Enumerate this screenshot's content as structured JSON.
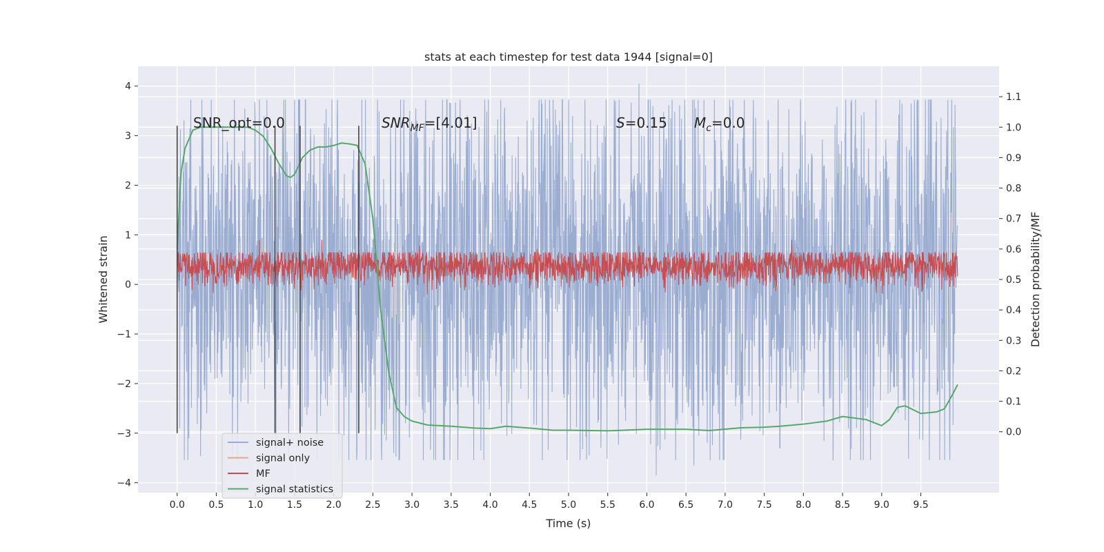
{
  "chart_data": {
    "type": "line",
    "title": "stats at each timestep for test data 1944 [signal=0]",
    "xlabel": "Time (s)",
    "ylabel": "Whitened strain",
    "ylabel_right": "Detection probability/MF",
    "xlim": [
      -0.5,
      10.5
    ],
    "ylim": [
      -4.2,
      4.4
    ],
    "ylim_right": [
      -0.2,
      1.2
    ],
    "x_ticks": [
      0.0,
      0.5,
      1.0,
      1.5,
      2.0,
      2.5,
      3.0,
      3.5,
      4.0,
      4.5,
      5.0,
      5.5,
      6.0,
      6.5,
      7.0,
      7.5,
      8.0,
      8.5,
      9.0,
      9.5
    ],
    "x_tick_labels": [
      "0.0",
      "0.5",
      "1.0",
      "1.5",
      "2.0",
      "2.5",
      "3.0",
      "3.5",
      "4.0",
      "4.5",
      "5.0",
      "5.5",
      "6.0",
      "6.5",
      "7.0",
      "7.5",
      "8.0",
      "8.5",
      "9.0",
      "9.5"
    ],
    "y_ticks": [
      -4,
      -3,
      -2,
      -1,
      0,
      1,
      2,
      3,
      4
    ],
    "y_tick_labels": [
      "−4",
      "−3",
      "−2",
      "−1",
      "0",
      "1",
      "2",
      "3",
      "4"
    ],
    "y_ticks_right": [
      0.0,
      0.1,
      0.2,
      0.3,
      0.4,
      0.5,
      0.6,
      0.7,
      0.8,
      0.9,
      1.0,
      1.1
    ],
    "y_tick_labels_right": [
      "0.0",
      "0.1",
      "0.2",
      "0.3",
      "0.4",
      "0.5",
      "0.6",
      "0.7",
      "0.8",
      "0.9",
      "1.0",
      "1.1"
    ],
    "grid": true,
    "legend_placement": "lower-left",
    "background": "#eaeaf2",
    "annotations": [
      {
        "x": 0.2,
        "y": 3.15,
        "text": "SNR_opt=0.0",
        "italic": false
      },
      {
        "x": 2.6,
        "y": 3.15,
        "text": "SNRMF=[4.01]",
        "italic": true
      },
      {
        "x": 5.6,
        "y": 3.15,
        "text": "S=0.15",
        "italic": true
      },
      {
        "x": 6.6,
        "y": 3.15,
        "text": "Mc=0.0",
        "italic": true
      }
    ],
    "vlines": {
      "x": [
        0.0,
        1.25,
        1.57,
        2.32
      ],
      "ymin": -3.0,
      "ymax": 3.2,
      "color": "#444444"
    },
    "series": [
      {
        "name": "signal+ noise",
        "axis": "left",
        "color": "#9aadd1",
        "kind": "noise",
        "x_range": [
          0.0,
          9.97
        ],
        "envelope": {
          "typical": [
            -1.6,
            2.2
          ],
          "extreme": [
            -3.85,
            4.05
          ]
        },
        "peaks": [
          {
            "x": 2.97,
            "y": 3.5
          },
          {
            "x": 5.9,
            "y": 4.05
          },
          {
            "x": 9.45,
            "y": 3.65
          },
          {
            "x": 0.58,
            "y": 3.2
          },
          {
            "x": 4.18,
            "y": 3.35
          },
          {
            "x": 7.55,
            "y": 3.3
          },
          {
            "x": 3.88,
            "y": -3.35
          },
          {
            "x": 6.12,
            "y": -3.85
          },
          {
            "x": 6.6,
            "y": -3.65
          },
          {
            "x": 8.38,
            "y": -3.55
          },
          {
            "x": 0.15,
            "y": -3.1
          },
          {
            "x": 7.7,
            "y": -3.3
          }
        ]
      },
      {
        "name": "signal only",
        "axis": "left",
        "color": "#e8a58c",
        "kind": "line",
        "x": [],
        "y": []
      },
      {
        "name": "MF",
        "axis": "right",
        "color": "#c44e52",
        "kind": "noise",
        "x_range": [
          0.0,
          9.97
        ],
        "envelope": {
          "typical": [
            0.51,
            0.58
          ],
          "extreme": [
            0.49,
            0.64
          ]
        },
        "peaks": [
          {
            "x": 1.05,
            "y": 0.63
          },
          {
            "x": 1.85,
            "y": 0.63
          },
          {
            "x": 7.85,
            "y": 0.63
          },
          {
            "x": 3.1,
            "y": 0.61
          },
          {
            "x": 5.9,
            "y": 0.61
          },
          {
            "x": 4.6,
            "y": 0.6
          }
        ]
      },
      {
        "name": "signal statistics",
        "axis": "right",
        "color": "#55a868",
        "kind": "line",
        "x": [
          0.0,
          0.05,
          0.1,
          0.15,
          0.2,
          0.3,
          0.5,
          0.7,
          0.9,
          1.0,
          1.1,
          1.2,
          1.3,
          1.4,
          1.45,
          1.5,
          1.6,
          1.7,
          1.8,
          1.9,
          2.0,
          2.1,
          2.2,
          2.3,
          2.4,
          2.5,
          2.55,
          2.6,
          2.7,
          2.8,
          2.9,
          3.0,
          3.2,
          3.5,
          3.8,
          4.0,
          4.2,
          4.5,
          4.8,
          5.0,
          5.5,
          6.0,
          6.5,
          6.8,
          7.2,
          7.5,
          7.7,
          8.0,
          8.3,
          8.5,
          8.8,
          9.0,
          9.1,
          9.2,
          9.3,
          9.5,
          9.7,
          9.8,
          9.9,
          9.97
        ],
        "y": [
          0.6,
          0.85,
          0.93,
          0.96,
          0.99,
          1.0,
          1.0,
          1.0,
          1.0,
          0.99,
          0.97,
          0.93,
          0.88,
          0.84,
          0.835,
          0.845,
          0.9,
          0.925,
          0.935,
          0.935,
          0.94,
          0.948,
          0.945,
          0.94,
          0.88,
          0.7,
          0.55,
          0.4,
          0.2,
          0.08,
          0.05,
          0.035,
          0.022,
          0.018,
          0.012,
          0.01,
          0.018,
          0.012,
          0.005,
          0.005,
          0.003,
          0.008,
          0.008,
          0.004,
          0.013,
          0.015,
          0.018,
          0.025,
          0.035,
          0.05,
          0.04,
          0.02,
          0.04,
          0.08,
          0.085,
          0.06,
          0.065,
          0.075,
          0.12,
          0.155
        ]
      }
    ]
  }
}
